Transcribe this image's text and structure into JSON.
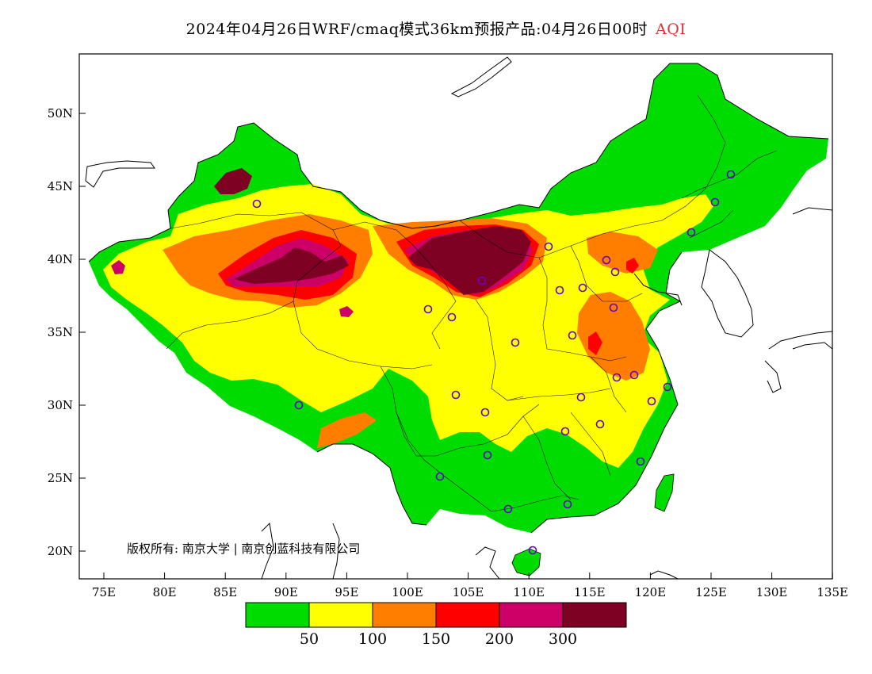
{
  "title": {
    "main": "2024年04月26日WRF/cmaq模式36km预报产品:04月26日00时",
    "variable": "AQI"
  },
  "colors": {
    "good": "#00dc00",
    "moderate": "#ffff00",
    "light": "#ff7e00",
    "medium": "#ff0000",
    "heavy": "#cc0066",
    "severe": "#7e0023",
    "title_accent": "#d33333",
    "station_marker": "#6600cc"
  },
  "axes": {
    "lat_labels": [
      "50N",
      "45N",
      "40N",
      "35N",
      "30N",
      "25N",
      "20N"
    ],
    "lon_labels": [
      "75E",
      "80E",
      "85E",
      "90E",
      "95E",
      "100E",
      "105E",
      "110E",
      "115E",
      "120E",
      "125E",
      "130E",
      "135E"
    ]
  },
  "legend": {
    "labels": [
      "50",
      "100",
      "150",
      "200",
      "300"
    ]
  },
  "copyright": "版权所有: 南京大学 | 南京创蓝科技有限公司"
}
